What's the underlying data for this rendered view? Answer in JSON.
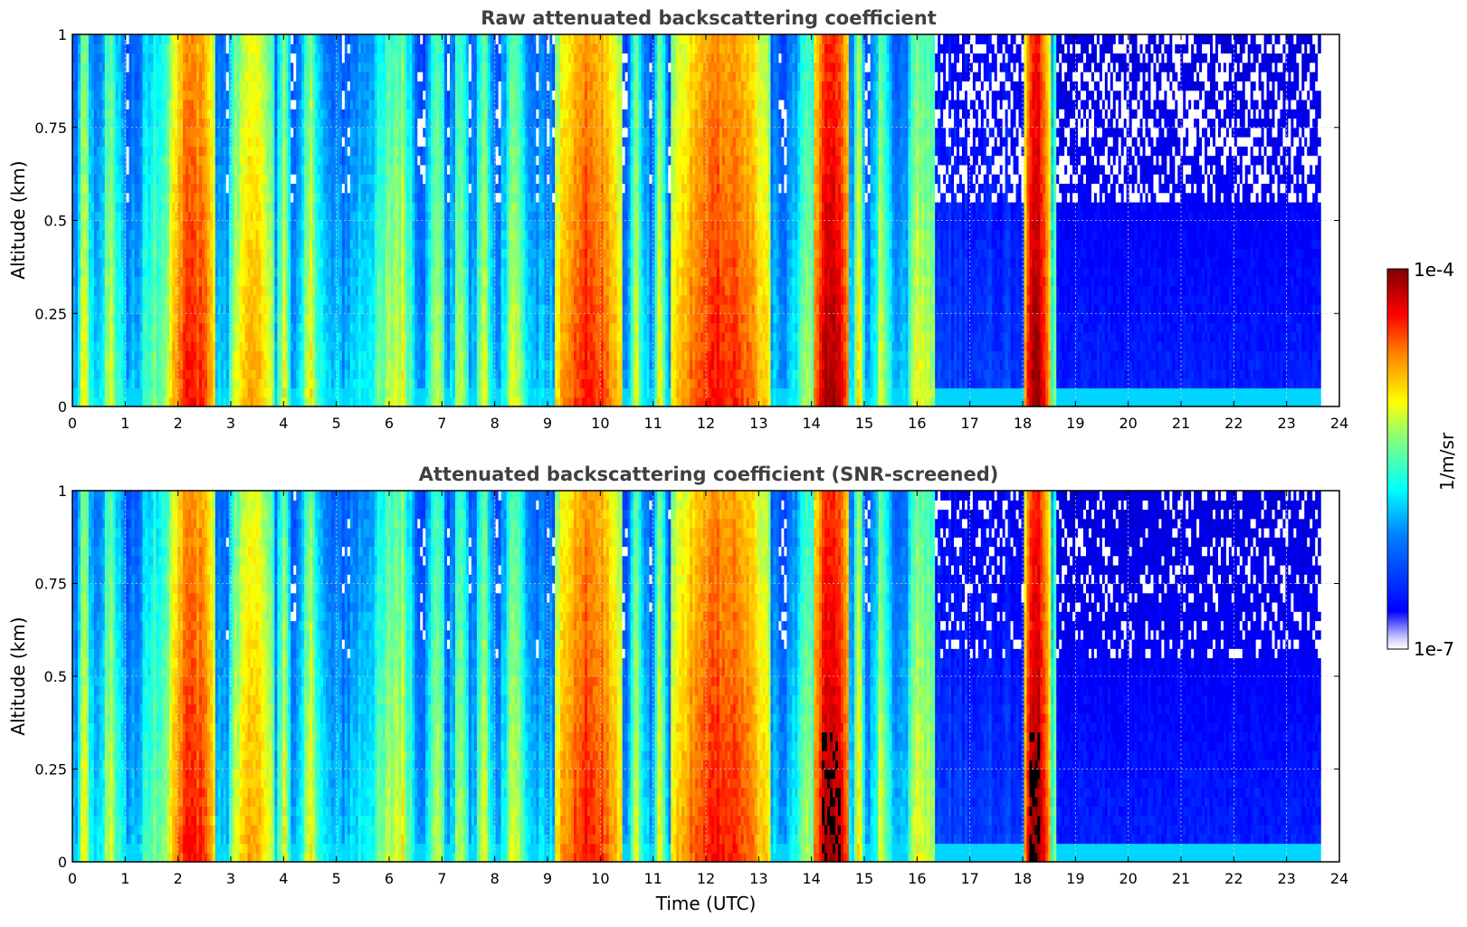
{
  "chart_data": [
    {
      "type": "heatmap",
      "title": "Raw attenuated backscattering coefficient",
      "xlabel": "",
      "ylabel": "Altitude (km)",
      "xlim": [
        0,
        24
      ],
      "ylim": [
        0,
        1
      ],
      "x_ticks": [
        "0",
        "1",
        "2",
        "3",
        "4",
        "5",
        "6",
        "7",
        "8",
        "9",
        "10",
        "11",
        "12",
        "13",
        "14",
        "15",
        "16",
        "17",
        "18",
        "19",
        "20",
        "21",
        "22",
        "23",
        "24"
      ],
      "y_ticks": [
        "0",
        "0.25",
        "0.5",
        "0.75",
        "1"
      ],
      "data_end_hour": 23.6,
      "screened": false,
      "high_backscatter_events": [
        {
          "start": 1.8,
          "end": 2.7,
          "level": "high"
        },
        {
          "start": 3.0,
          "end": 3.8,
          "level": "elevated"
        },
        {
          "start": 9.1,
          "end": 10.4,
          "level": "high"
        },
        {
          "start": 11.3,
          "end": 13.2,
          "level": "high"
        },
        {
          "start": 14.0,
          "end": 14.7,
          "level": "very high"
        },
        {
          "start": 18.0,
          "end": 18.5,
          "level": "very high"
        }
      ]
    },
    {
      "type": "heatmap",
      "title": "Attenuated backscattering coefficient (SNR-screened)",
      "xlabel": "Time (UTC)",
      "ylabel": "Altitude (km)",
      "xlim": [
        0,
        24
      ],
      "ylim": [
        0,
        1
      ],
      "x_ticks": [
        "0",
        "1",
        "2",
        "3",
        "4",
        "5",
        "6",
        "7",
        "8",
        "9",
        "10",
        "11",
        "12",
        "13",
        "14",
        "15",
        "16",
        "17",
        "18",
        "19",
        "20",
        "21",
        "22",
        "23",
        "24"
      ],
      "y_ticks": [
        "0",
        "0.25",
        "0.5",
        "0.75",
        "1"
      ],
      "data_end_hour": 23.6,
      "screened": true
    }
  ],
  "colorbar": {
    "label": "1/m/sr",
    "max_label": "1e-4",
    "min_label": "1e-7",
    "colormap": "jet"
  }
}
